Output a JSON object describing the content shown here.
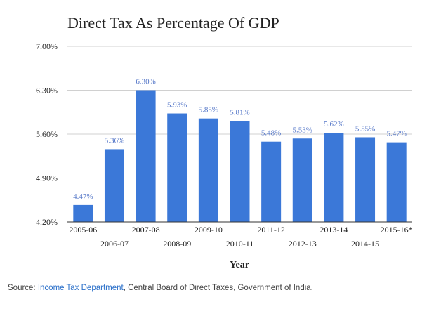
{
  "colors": {
    "bar": "#3b78d8",
    "label": "#5577c8",
    "grid": "#d0d0d0",
    "axis": "#333333",
    "text": "#222222",
    "link": "#2a6fc9"
  },
  "chart_data": {
    "type": "bar",
    "title": "Direct Tax As Percentage Of GDP",
    "xlabel": "Year",
    "ylabel": "",
    "ylim": [
      4.2,
      7.0
    ],
    "yticks": [
      4.2,
      4.9,
      5.6,
      6.3,
      7.0
    ],
    "ytick_labels": [
      "4.20%",
      "4.90%",
      "5.60%",
      "6.30%",
      "7.00%"
    ],
    "grid": true,
    "legend": "none",
    "categories": [
      "2005-06",
      "2006-07",
      "2007-08",
      "2008-09",
      "2009-10",
      "2010-11",
      "2011-12",
      "2012-13",
      "2013-14",
      "2014-15",
      "2015-16*"
    ],
    "values": [
      4.47,
      5.36,
      6.3,
      5.93,
      5.85,
      5.81,
      5.48,
      5.53,
      5.62,
      5.55,
      5.47
    ],
    "value_labels": [
      "4.47%",
      "5.36%",
      "6.30%",
      "5.93%",
      "5.85%",
      "5.81%",
      "5.48%",
      "5.53%",
      "5.62%",
      "5.55%",
      "5.47%"
    ]
  },
  "source": {
    "prefix": "Source: ",
    "link_text": "Income Tax Department",
    "suffix": ", Central Board of Direct Taxes, Government of India."
  }
}
